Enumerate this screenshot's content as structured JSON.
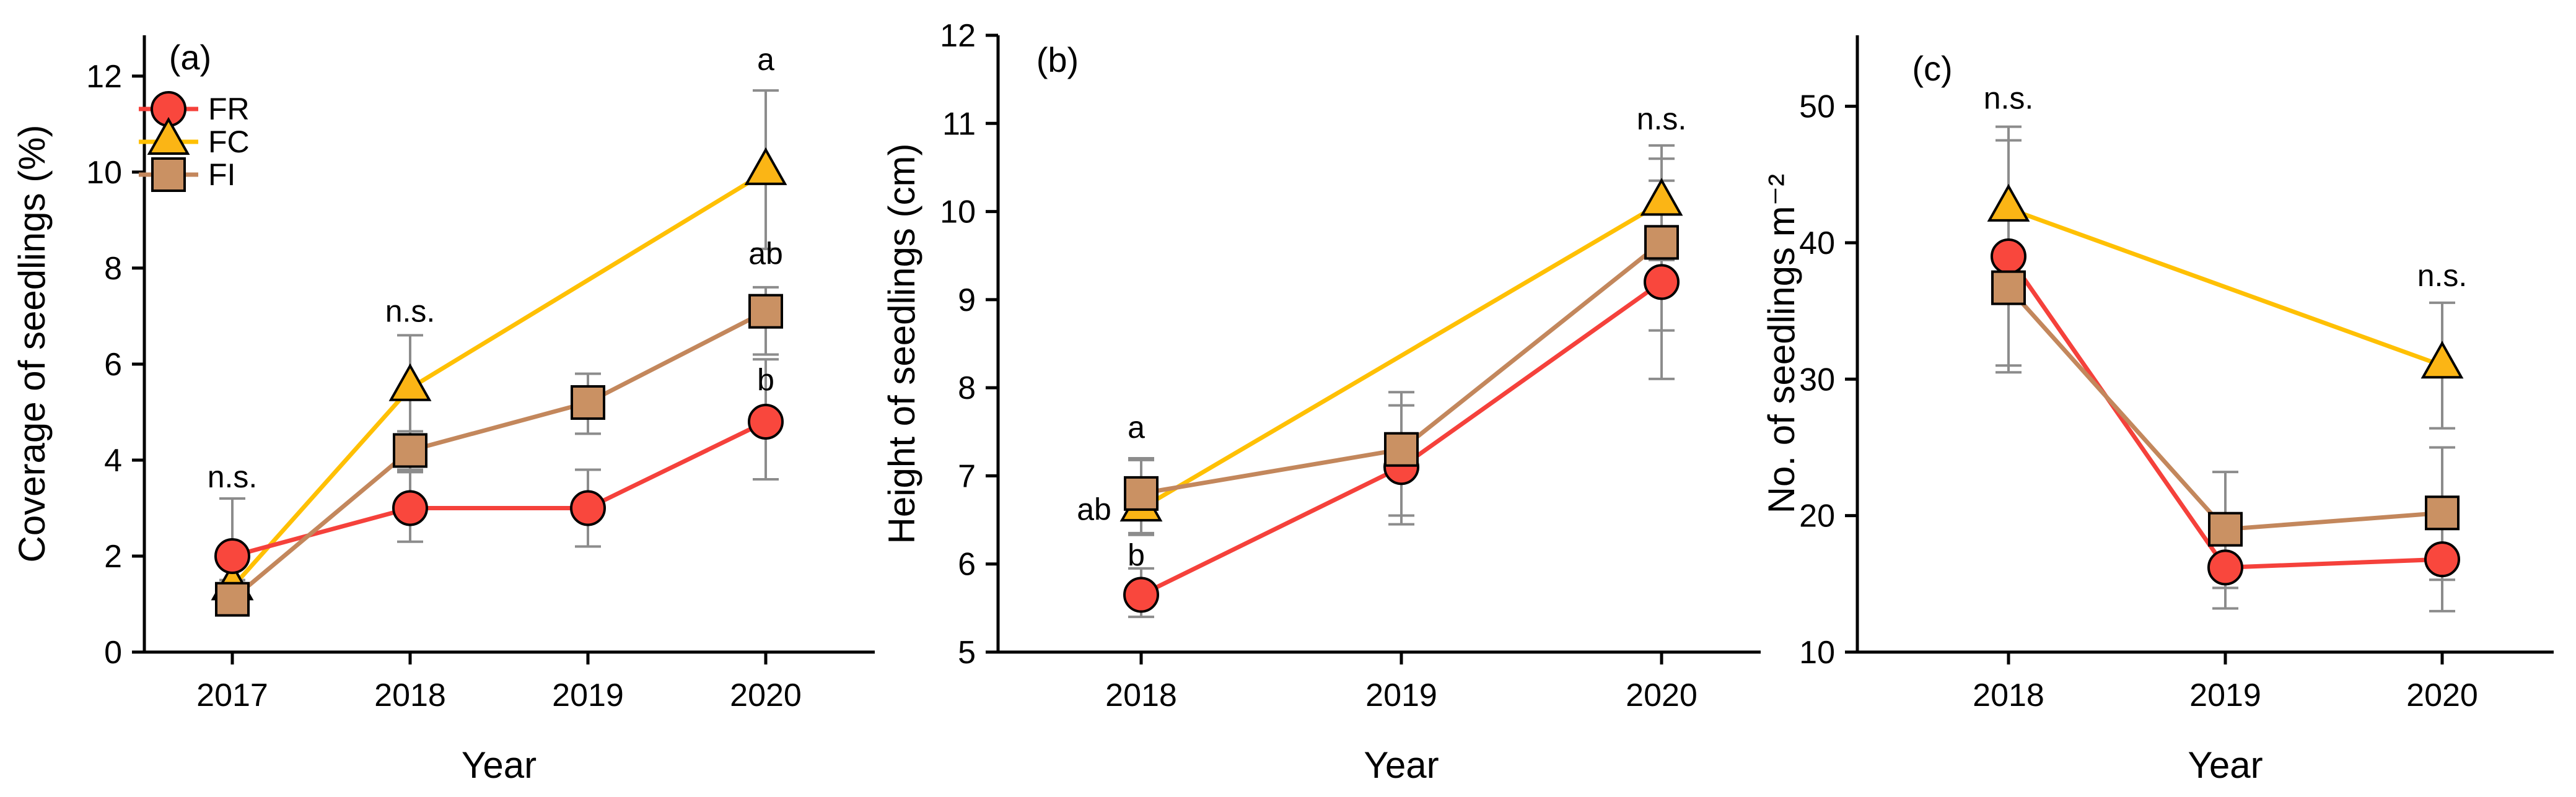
{
  "chart_data": {
    "type": "line",
    "description": "Three-panel line chart of seedling dynamics by year with error bars and significance letters",
    "error_bar_color": "#8C8C8C",
    "axis_color": "#000000",
    "series_styles": {
      "FC": {
        "label": "FC",
        "marker": "triangle",
        "line_color": "#FFC003",
        "fill_color": "#FBB515"
      },
      "FR": {
        "label": "FR",
        "marker": "circle",
        "line_color": "#F5413B",
        "fill_color": "#F9473D"
      },
      "FI": {
        "label": "FI",
        "marker": "square",
        "line_color": "#C3875C",
        "fill_color": "#CA9163"
      }
    },
    "legend": {
      "items": [
        "FR",
        "FC",
        "FI"
      ],
      "location": "panel-a-upper-left"
    },
    "panels": [
      {
        "id": "a",
        "label": "(a)",
        "x_label": "Year",
        "y_label": "Coverage of seedlings (%)",
        "ylim": [
          0,
          12.85
        ],
        "y_ticks": [
          0,
          2,
          4,
          6,
          8,
          10,
          12
        ],
        "categories": [
          "2017",
          "2018",
          "2019",
          "2020"
        ],
        "series": [
          {
            "key": "FC",
            "points": [
              {
                "x": "2017",
                "y": 1.35,
                "eu": 0.15,
                "ed": 0.15
              },
              {
                "x": "2018",
                "y": 5.5,
                "eu": 1.1,
                "ed": 0.9
              },
              {
                "x": "2020",
                "y": 10.0,
                "eu": 1.7,
                "ed": 1.6
              }
            ]
          },
          {
            "key": "FR",
            "points": [
              {
                "x": "2017",
                "y": 2.0,
                "eu": 1.2,
                "ed": 0.5
              },
              {
                "x": "2018",
                "y": 3.0,
                "eu": 0.75,
                "ed": 0.7
              },
              {
                "x": "2019",
                "y": 3.0,
                "eu": 0.8,
                "ed": 0.8
              },
              {
                "x": "2020",
                "y": 4.8,
                "eu": 1.3,
                "ed": 1.2
              }
            ]
          },
          {
            "key": "FI",
            "points": [
              {
                "x": "2017",
                "y": 1.1,
                "eu": 0.3,
                "ed": 0.3
              },
              {
                "x": "2018",
                "y": 4.2,
                "eu": 0.4,
                "ed": 0.4
              },
              {
                "x": "2019",
                "y": 5.2,
                "eu": 0.6,
                "ed": 0.65
              },
              {
                "x": "2020",
                "y": 7.1,
                "eu": 0.5,
                "ed": 0.9
              }
            ]
          }
        ],
        "annotations": [
          {
            "text": "n.s.",
            "x": "2017",
            "y": 3.65
          },
          {
            "text": "n.s.",
            "x": "2018",
            "y": 7.1
          },
          {
            "text": "a",
            "x": "2020",
            "y": 12.35
          },
          {
            "text": "ab",
            "x": "2020",
            "y": 8.3
          },
          {
            "text": "b",
            "x": "2020",
            "y": 5.67
          }
        ]
      },
      {
        "id": "b",
        "label": "(b)",
        "x_label": "Year",
        "y_label": "Height of seedlings (cm)",
        "ylim": [
          5,
          12
        ],
        "y_ticks": [
          5,
          6,
          7,
          8,
          9,
          10,
          11,
          12
        ],
        "categories": [
          "2018",
          "2019",
          "2020"
        ],
        "series": [
          {
            "key": "FC",
            "points": [
              {
                "x": "2018",
                "y": 6.63,
                "eu": 0.55,
                "ed": 0.3
              },
              {
                "x": "2020",
                "y": 10.1,
                "eu": 0.65,
                "ed": 0.65
              }
            ]
          },
          {
            "key": "FR",
            "points": [
              {
                "x": "2018",
                "y": 5.65,
                "eu": 0.3,
                "ed": 0.25
              },
              {
                "x": "2019",
                "y": 7.1,
                "eu": 0.7,
                "ed": 0.65
              },
              {
                "x": "2020",
                "y": 9.2,
                "eu": 1.15,
                "ed": 1.1
              }
            ]
          },
          {
            "key": "FI",
            "points": [
              {
                "x": "2018",
                "y": 6.8,
                "eu": 0.4,
                "ed": 0.45
              },
              {
                "x": "2019",
                "y": 7.3,
                "eu": 0.65,
                "ed": 0.75
              },
              {
                "x": "2020",
                "y": 9.65,
                "eu": 0.95,
                "ed": 1.0
              }
            ]
          }
        ],
        "annotations": [
          {
            "text": "a",
            "x": "2018",
            "y": 7.55,
            "dx": -8
          },
          {
            "text": "ab",
            "x": "2018",
            "y": 6.62,
            "dx": -76
          },
          {
            "text": "b",
            "x": "2018",
            "y": 6.1,
            "dx": -8
          },
          {
            "text": "n.s.",
            "x": "2020",
            "y": 11.05
          }
        ]
      },
      {
        "id": "c",
        "label": "(c)",
        "x_label": "Year",
        "y_label": "No. of seedlings m⁻²",
        "ylim": [
          10,
          55.2
        ],
        "y_ticks": [
          10,
          20,
          30,
          40,
          50
        ],
        "categories": [
          "2018",
          "2019",
          "2020"
        ],
        "series": [
          {
            "key": "FC",
            "points": [
              {
                "x": "2018",
                "y": 42.5,
                "eu": 6.0,
                "ed": 6.0
              },
              {
                "x": "2020",
                "y": 31.0,
                "eu": 4.6,
                "ed": 4.6
              }
            ]
          },
          {
            "key": "FR",
            "points": [
              {
                "x": "2018",
                "y": 39.0,
                "eu": 8.5,
                "ed": 8.5
              },
              {
                "x": "2019",
                "y": 16.2,
                "eu": 2.8,
                "ed": 3.0
              },
              {
                "x": "2020",
                "y": 16.8,
                "eu": 3.7,
                "ed": 3.8
              }
            ]
          },
          {
            "key": "FI",
            "points": [
              {
                "x": "2018",
                "y": 36.7,
                "eu": 5.7,
                "ed": 5.7
              },
              {
                "x": "2019",
                "y": 19.0,
                "eu": 4.2,
                "ed": 4.3
              },
              {
                "x": "2020",
                "y": 20.2,
                "eu": 4.8,
                "ed": 4.9
              }
            ]
          }
        ],
        "annotations": [
          {
            "text": "n.s.",
            "x": "2018",
            "y": 50.6
          },
          {
            "text": "n.s.",
            "x": "2020",
            "y": 37.6
          }
        ]
      }
    ]
  }
}
